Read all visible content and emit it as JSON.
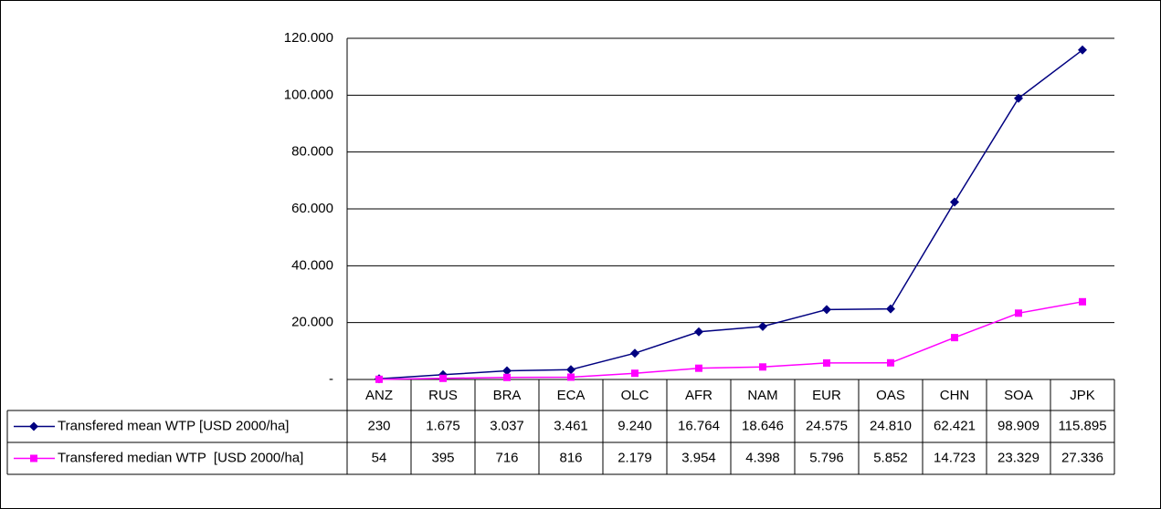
{
  "chart_data": {
    "type": "line",
    "categories": [
      "ANZ",
      "RUS",
      "BRA",
      "ECA",
      "OLC",
      "AFR",
      "NAM",
      "EUR",
      "OAS",
      "CHN",
      "SOA",
      "JPK"
    ],
    "series": [
      {
        "name": "Transfered mean WTP [USD 2000/ha]",
        "color": "#000080",
        "values": [
          230,
          1675,
          3037,
          3461,
          9240,
          16764,
          18646,
          24575,
          24810,
          62421,
          98909,
          115895
        ],
        "value_labels": [
          "230",
          "1.675",
          "3.037",
          "3.461",
          "9.240",
          "16.764",
          "18.646",
          "24.575",
          "24.810",
          "62.421",
          "98.909",
          "115.895"
        ]
      },
      {
        "name": "Transfered median WTP  [USD 2000/ha]",
        "color": "#ff00ff",
        "values": [
          54,
          395,
          716,
          816,
          2179,
          3954,
          4398,
          5796,
          5852,
          14723,
          23329,
          27336
        ],
        "value_labels": [
          "54",
          "395",
          "716",
          "816",
          "2.179",
          "3.954",
          "4.398",
          "5.796",
          "5.852",
          "14.723",
          "23.329",
          "27.336"
        ]
      }
    ],
    "ylim": [
      0,
      120000
    ],
    "yticks": [
      {
        "value": 0,
        "label": "-"
      },
      {
        "value": 20000,
        "label": "20.000"
      },
      {
        "value": 40000,
        "label": "40.000"
      },
      {
        "value": 60000,
        "label": "60.000"
      },
      {
        "value": 80000,
        "label": "80.000"
      },
      {
        "value": 100000,
        "label": "100.000"
      },
      {
        "value": 120000,
        "label": "120.000"
      }
    ],
    "grid": true
  }
}
